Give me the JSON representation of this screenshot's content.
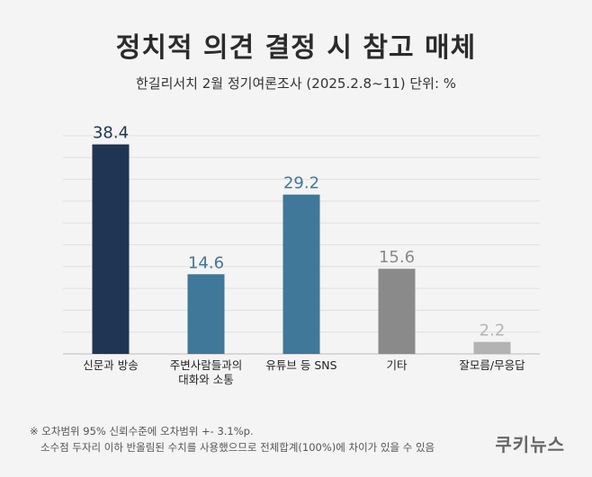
{
  "chart_data": {
    "type": "bar",
    "title": "정치적 의견 결정 시 참고 매체",
    "subtitle": "한길리서치 2월 정기여론조사 (2025.2.8~11) 단위: %",
    "categories": [
      "신문과 방송",
      "주변사람들과의 대화와 소통",
      "유튜브 등 SNS",
      "기타",
      "잘모름/무응답"
    ],
    "category_lines": [
      [
        "신문과 방송"
      ],
      [
        "주변사람들과의",
        "대화와 소통"
      ],
      [
        "유튜브 등 SNS"
      ],
      [
        "기타"
      ],
      [
        "잘모름/무응답"
      ]
    ],
    "values": [
      38.4,
      14.6,
      29.2,
      15.6,
      2.2
    ],
    "value_labels": [
      "38.4",
      "14.6",
      "29.2",
      "15.6",
      "2.2"
    ],
    "bar_colors": [
      "#1f3553",
      "#3f7899",
      "#3f7899",
      "#8a8a8a",
      "#b3b3b3"
    ],
    "label_colors": [
      "#1f3553",
      "#3f7899",
      "#3f7899",
      "#8a8a8a",
      "#b3b3b3"
    ],
    "ylim": [
      0,
      40
    ],
    "grid": true
  },
  "footnote": {
    "line1": "※ 오차범위 95% 신뢰수준에 오차범위 +- 3.1%p.",
    "line2": "소수점 두자리 이하 반올림된 수치를 사용했으므로 전체합계(100%)에 차이가 있을 수 있음"
  },
  "brand": "쿠키뉴스"
}
